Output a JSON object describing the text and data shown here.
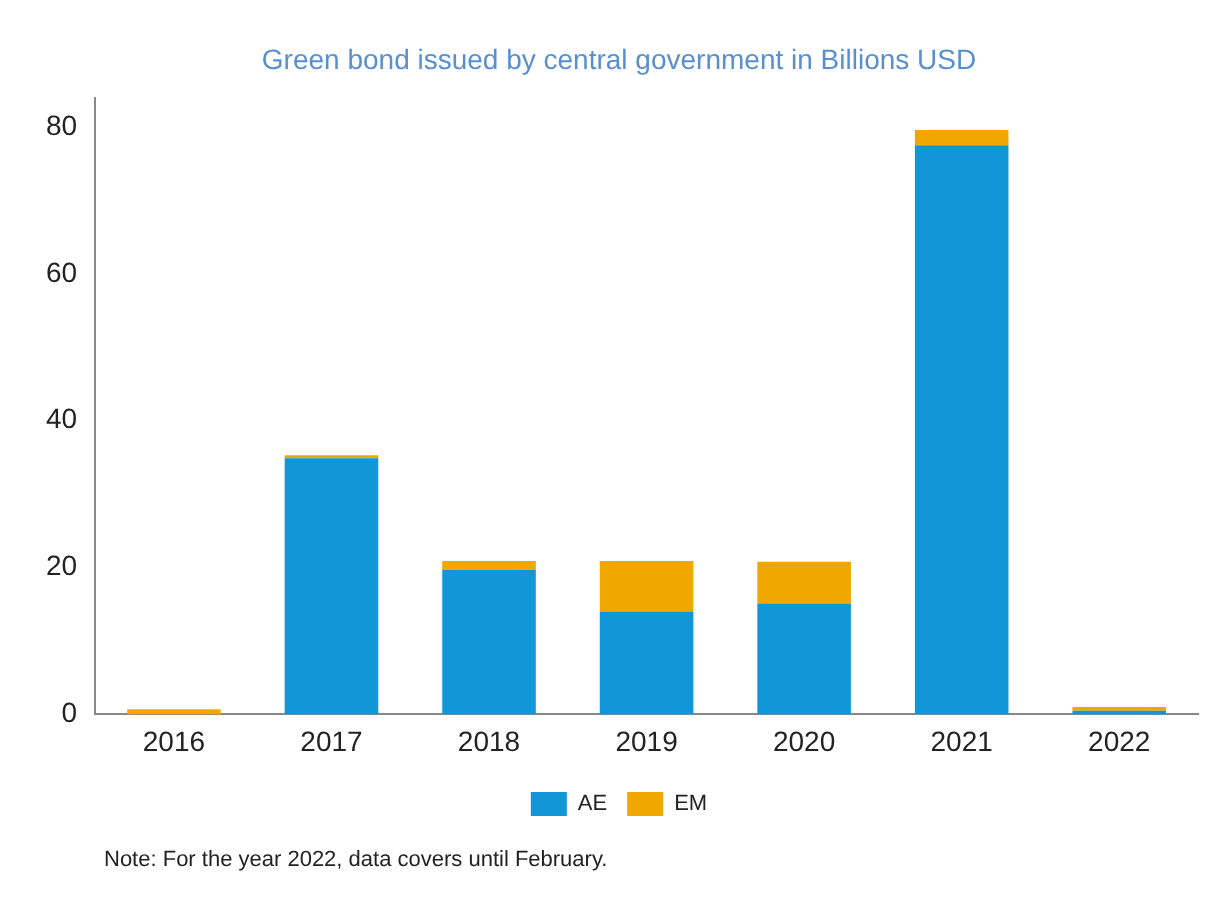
{
  "chart_data": {
    "type": "bar",
    "title": "Green bond issued by central government in Billions USD",
    "categories": [
      "2016",
      "2017",
      "2018",
      "2019",
      "2020",
      "2021",
      "2022"
    ],
    "series": [
      {
        "name": "AE",
        "color": "#1196d8",
        "values": [
          0,
          34.9,
          19.7,
          14.0,
          15.1,
          77.5,
          0.5
        ]
      },
      {
        "name": "EM",
        "color": "#f0a800",
        "values": [
          0.7,
          0.4,
          1.2,
          6.9,
          5.7,
          2.1,
          0.5
        ]
      }
    ],
    "stacked": true,
    "ylim": [
      0,
      84
    ],
    "yticks": [
      0,
      20,
      40,
      60,
      80
    ],
    "grid": false,
    "legend": "bottom",
    "annotations": [
      "Note: For the year 2022, data covers until February."
    ]
  }
}
